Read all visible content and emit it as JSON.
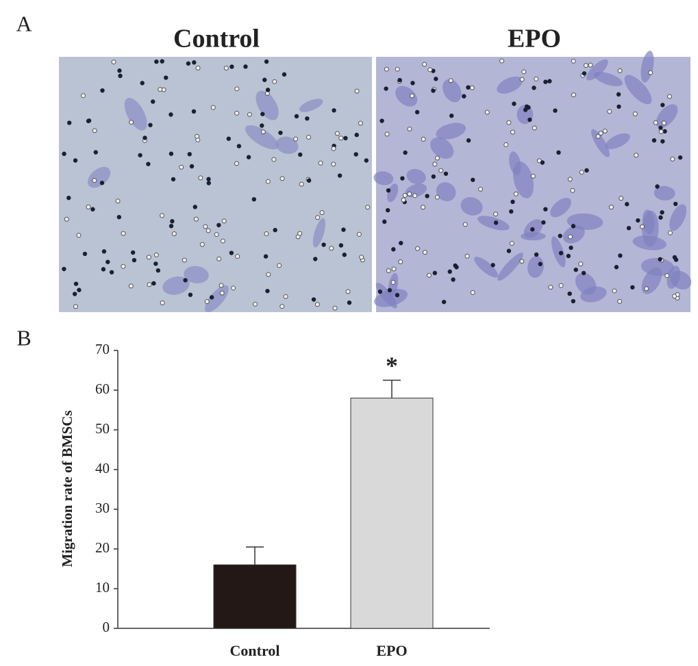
{
  "panels": {
    "a_label": "A",
    "b_label": "B",
    "image_titles": [
      "Control",
      "EPO"
    ]
  },
  "chart_data": {
    "type": "bar",
    "categories": [
      "Control",
      "EPO"
    ],
    "values": [
      16,
      58
    ],
    "errors": [
      4.5,
      4.5
    ],
    "colors": [
      "#231815",
      "#d9d9d9"
    ],
    "ylabel": "Migration rate of BMSCs",
    "annotation": "*",
    "ylim": [
      0,
      70
    ],
    "yticks": [
      0,
      10,
      20,
      30,
      40,
      50,
      60,
      70
    ]
  }
}
